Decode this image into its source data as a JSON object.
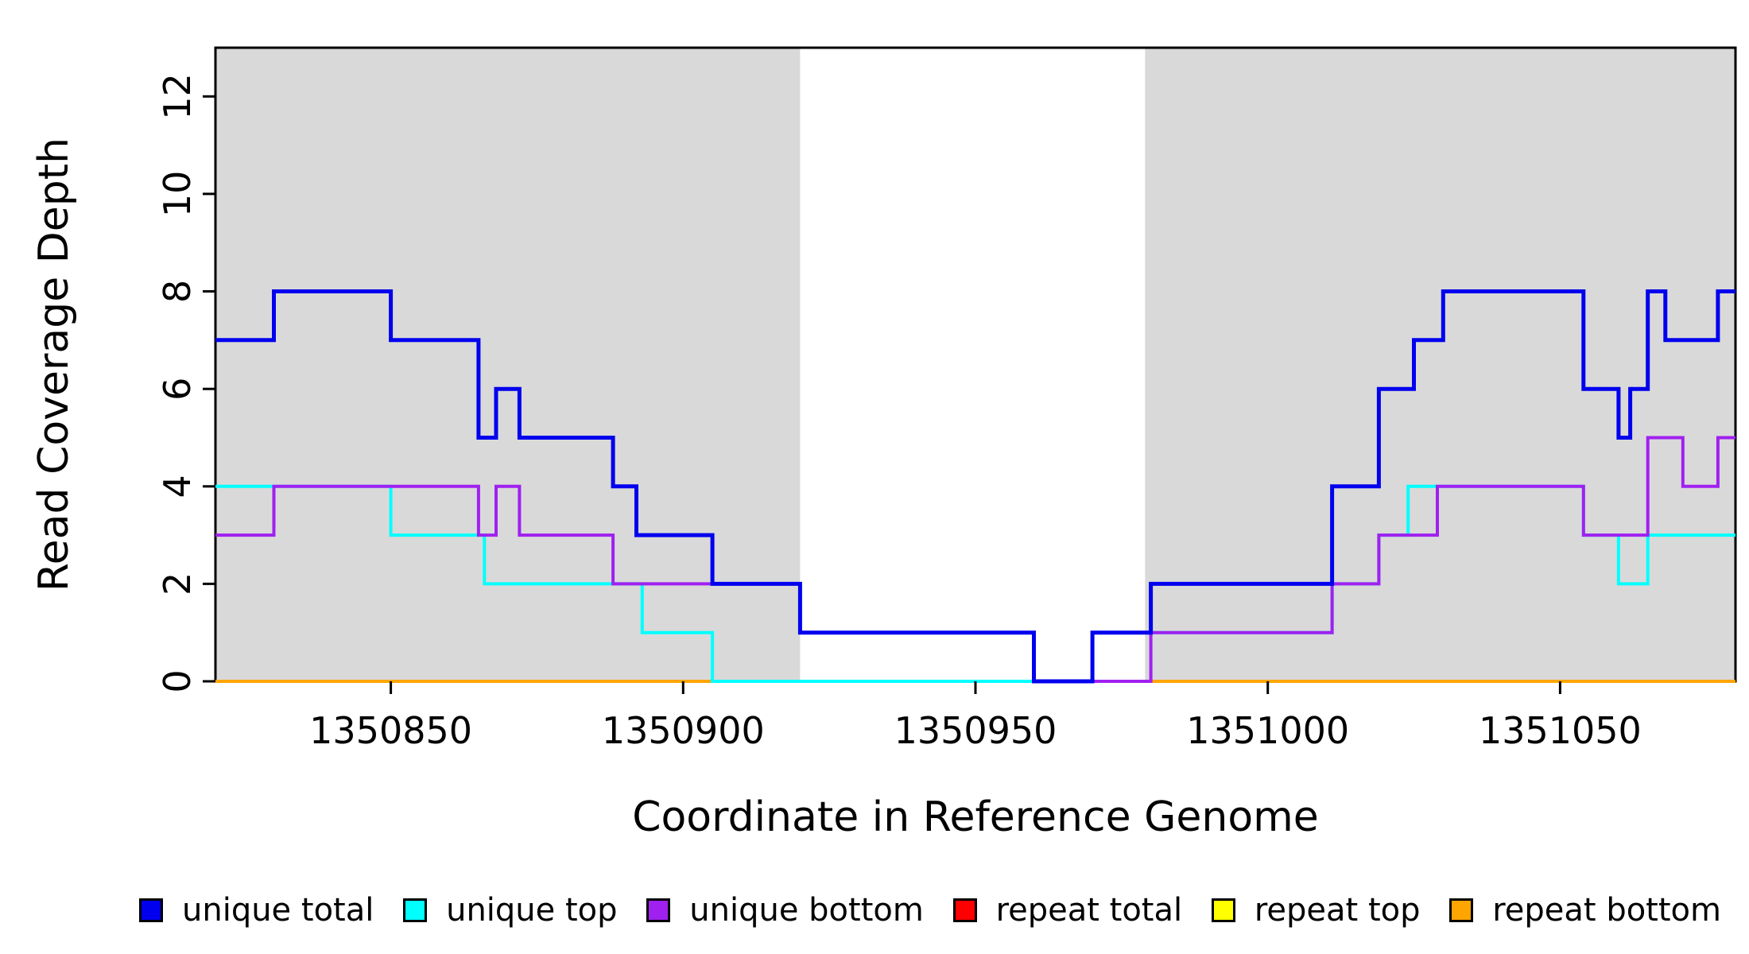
{
  "chart_data": {
    "type": "line",
    "line_style": "step",
    "title": "",
    "xlabel": "Coordinate in Reference Genome",
    "ylabel": "Read Coverage Depth",
    "xlim": [
      1350820,
      1351080
    ],
    "ylim": [
      0,
      13
    ],
    "xticks": [
      1350850,
      1350900,
      1350950,
      1351000,
      1351050
    ],
    "yticks": [
      0,
      2,
      4,
      6,
      8,
      10,
      12
    ],
    "grid": false,
    "legend_position": "bottom",
    "shading_color": "#d9d9d9",
    "shaded_regions": [
      [
        1350820,
        1350920
      ],
      [
        1350979,
        1351080
      ]
    ],
    "draw_order": [
      3,
      4,
      5,
      1,
      2,
      0
    ],
    "series": [
      {
        "name": "unique total",
        "color": "#0000ee",
        "width": 5,
        "points": [
          [
            1350820,
            7
          ],
          [
            1350830,
            8
          ],
          [
            1350850,
            7
          ],
          [
            1350865,
            5
          ],
          [
            1350868,
            6
          ],
          [
            1350872,
            5
          ],
          [
            1350888,
            4
          ],
          [
            1350892,
            3
          ],
          [
            1350905,
            2
          ],
          [
            1350920,
            1
          ],
          [
            1350960,
            0
          ],
          [
            1350970,
            1
          ],
          [
            1350980,
            2
          ],
          [
            1351011,
            4
          ],
          [
            1351019,
            6
          ],
          [
            1351025,
            7
          ],
          [
            1351030,
            8
          ],
          [
            1351054,
            6
          ],
          [
            1351060,
            5
          ],
          [
            1351062,
            6
          ],
          [
            1351065,
            8
          ],
          [
            1351068,
            7
          ],
          [
            1351077,
            8
          ]
        ]
      },
      {
        "name": "unique top",
        "color": "#00ffff",
        "width": 4,
        "points": [
          [
            1350820,
            4
          ],
          [
            1350850,
            3
          ],
          [
            1350866,
            2
          ],
          [
            1350893,
            1
          ],
          [
            1350905,
            0
          ],
          [
            1350970,
            1
          ],
          [
            1351011,
            2
          ],
          [
            1351019,
            3
          ],
          [
            1351024,
            4
          ],
          [
            1351054,
            3
          ],
          [
            1351060,
            2
          ],
          [
            1351065,
            3
          ]
        ]
      },
      {
        "name": "unique bottom",
        "color": "#a020f0",
        "width": 4,
        "points": [
          [
            1350820,
            3
          ],
          [
            1350830,
            4
          ],
          [
            1350865,
            3
          ],
          [
            1350868,
            4
          ],
          [
            1350872,
            3
          ],
          [
            1350888,
            2
          ],
          [
            1350920,
            1
          ],
          [
            1350960,
            0
          ],
          [
            1350980,
            1
          ],
          [
            1351011,
            2
          ],
          [
            1351019,
            3
          ],
          [
            1351029,
            4
          ],
          [
            1351054,
            3
          ],
          [
            1351065,
            5
          ],
          [
            1351071,
            4
          ],
          [
            1351077,
            5
          ]
        ]
      },
      {
        "name": "repeat total",
        "color": "#ff0000",
        "width": 4,
        "points": [
          [
            1350820,
            0
          ]
        ]
      },
      {
        "name": "repeat top",
        "color": "#ffff00",
        "width": 4,
        "points": [
          [
            1350820,
            0
          ]
        ]
      },
      {
        "name": "repeat bottom",
        "color": "#ffa500",
        "width": 4,
        "points": [
          [
            1350820,
            0
          ]
        ]
      }
    ]
  }
}
